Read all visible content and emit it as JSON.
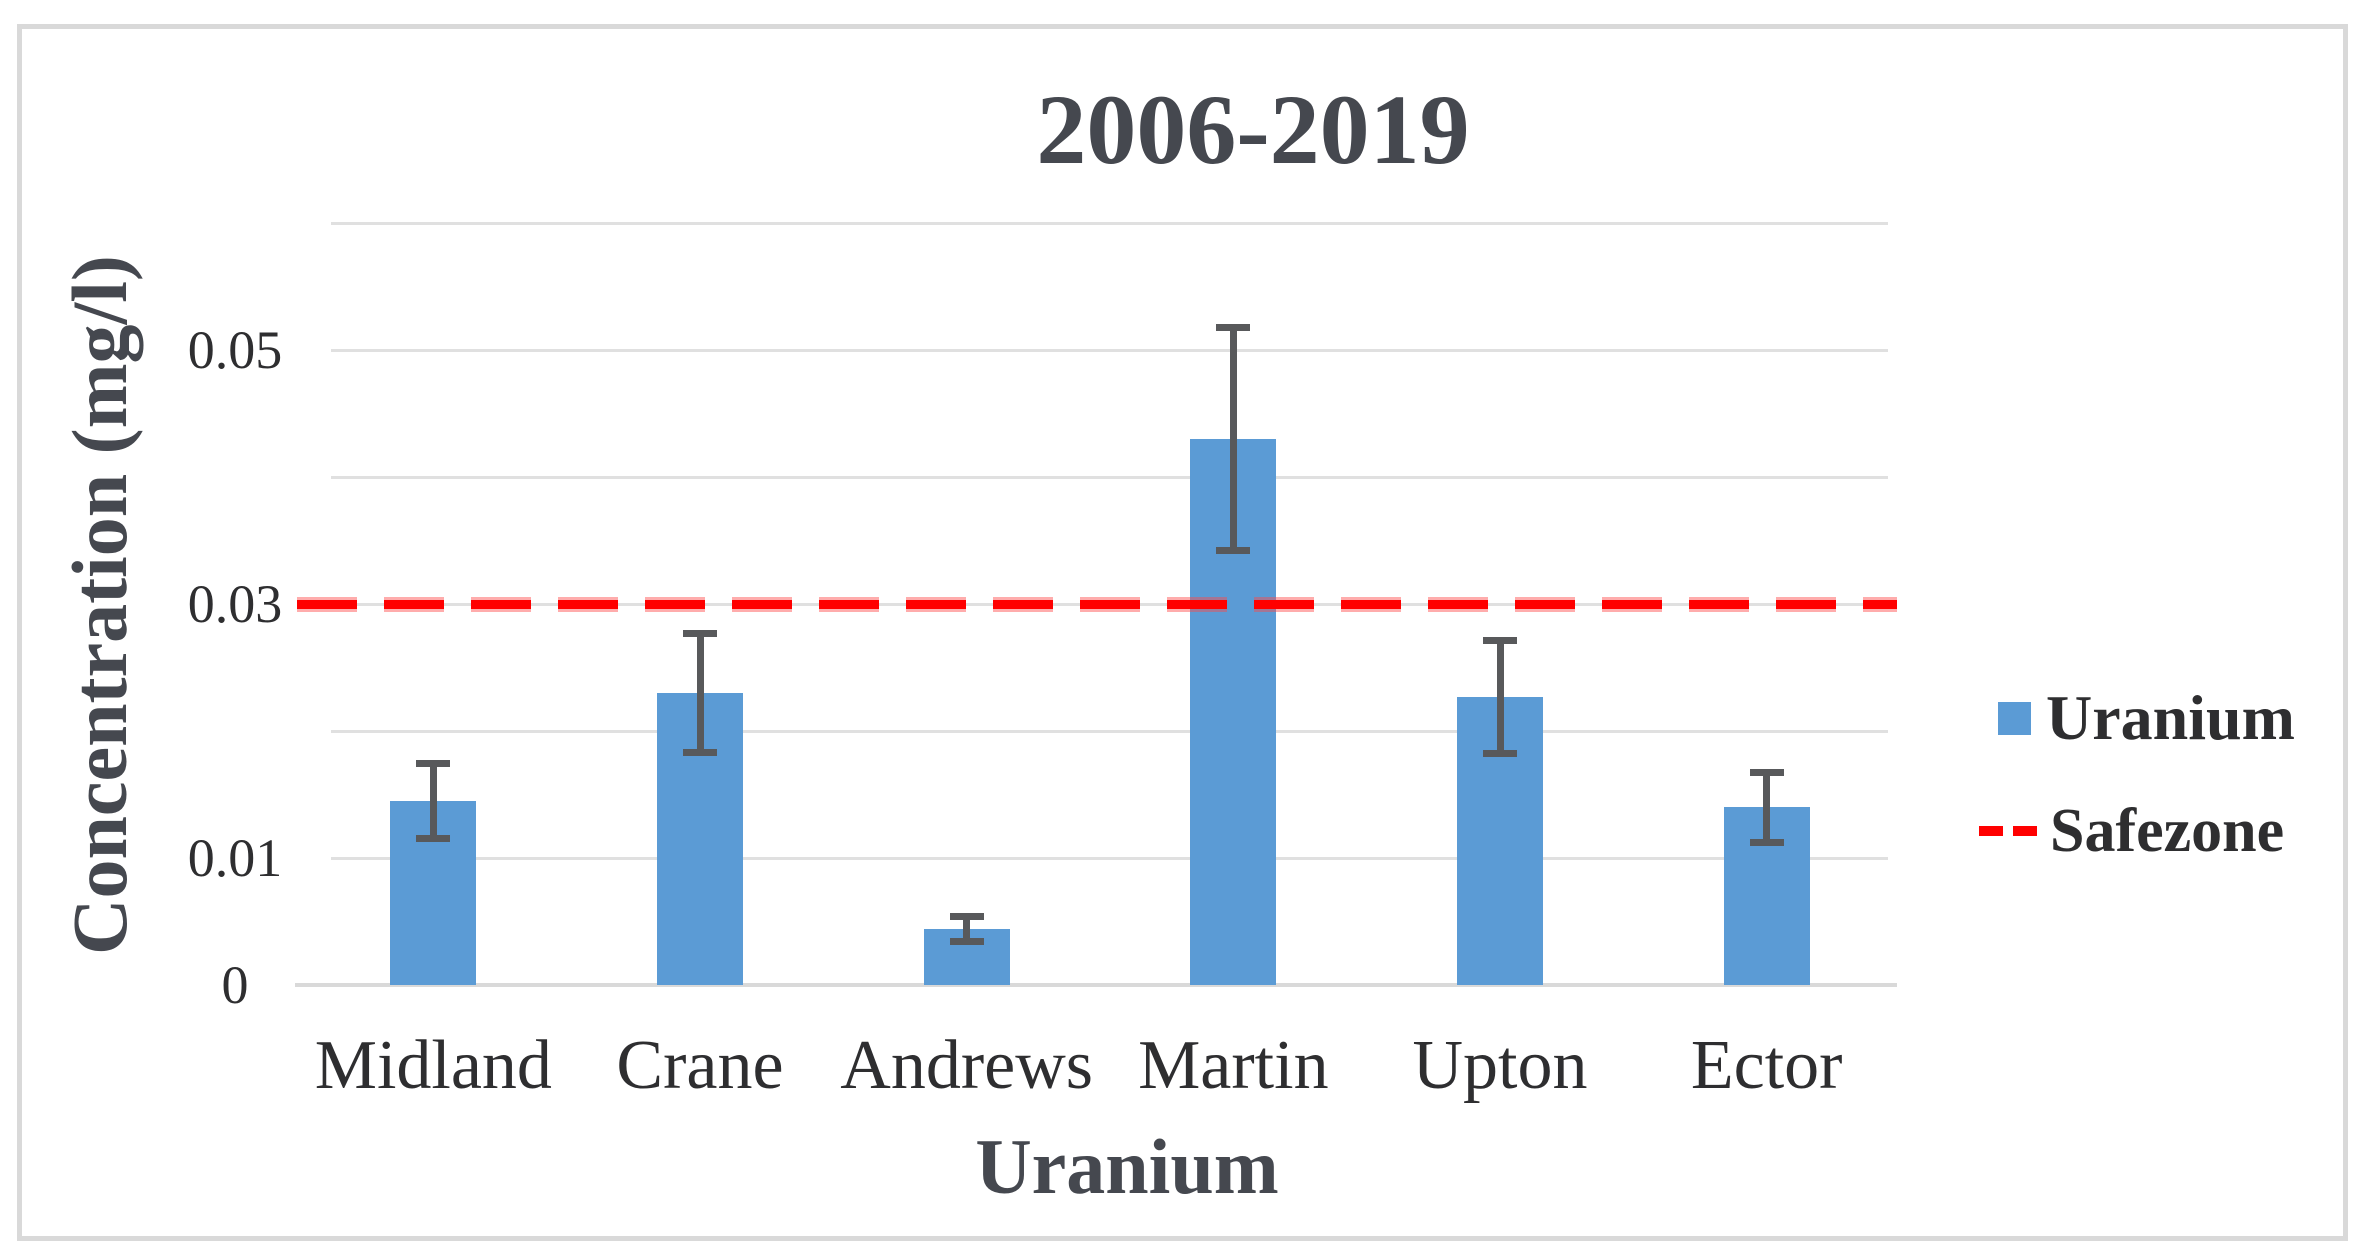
{
  "chart_data": {
    "type": "bar",
    "title": "2006-2019",
    "xlabel": "Uranium",
    "ylabel": "Concentration (mg/l)",
    "categories": [
      "Midland",
      "Crane",
      "Andrews",
      "Martin",
      "Upton",
      "Ector"
    ],
    "series": [
      {
        "name": "Uranium",
        "values": [
          0.0145,
          0.023,
          0.0044,
          0.043,
          0.0227,
          0.014
        ],
        "error_plus_minus": [
          0.003,
          0.0047,
          0.001,
          0.0088,
          0.0045,
          0.0028
        ],
        "color": "#5B9BD5"
      }
    ],
    "reference_line": {
      "name": "Safezone",
      "value": 0.03,
      "color": "#FF0000",
      "style": "dashed"
    },
    "ylim": [
      0,
      0.06
    ],
    "gridline_interval": 0.01,
    "grid": true,
    "yticks": [
      {
        "value": 0,
        "label": "0"
      },
      {
        "value": 0.01,
        "label": "0.01"
      },
      {
        "value": 0.03,
        "label": "0.03"
      },
      {
        "value": 0.05,
        "label": "0.05"
      }
    ],
    "legend_position": "right",
    "legend": [
      {
        "label": "Uranium",
        "marker": "square",
        "color": "#5B9BD5"
      },
      {
        "label": "Safezone",
        "marker": "dashed-line",
        "color": "#FF0000"
      }
    ],
    "colors": {
      "bar": "#5B9BD5",
      "safezone": "#FF0000",
      "gridline": "#E0E0E0",
      "axis_line": "#D9D9D9",
      "error_bar": "#58595B",
      "figure_border": "#D9D9D9",
      "title_text": "#45484f",
      "label_text": "#2e2e30"
    }
  }
}
